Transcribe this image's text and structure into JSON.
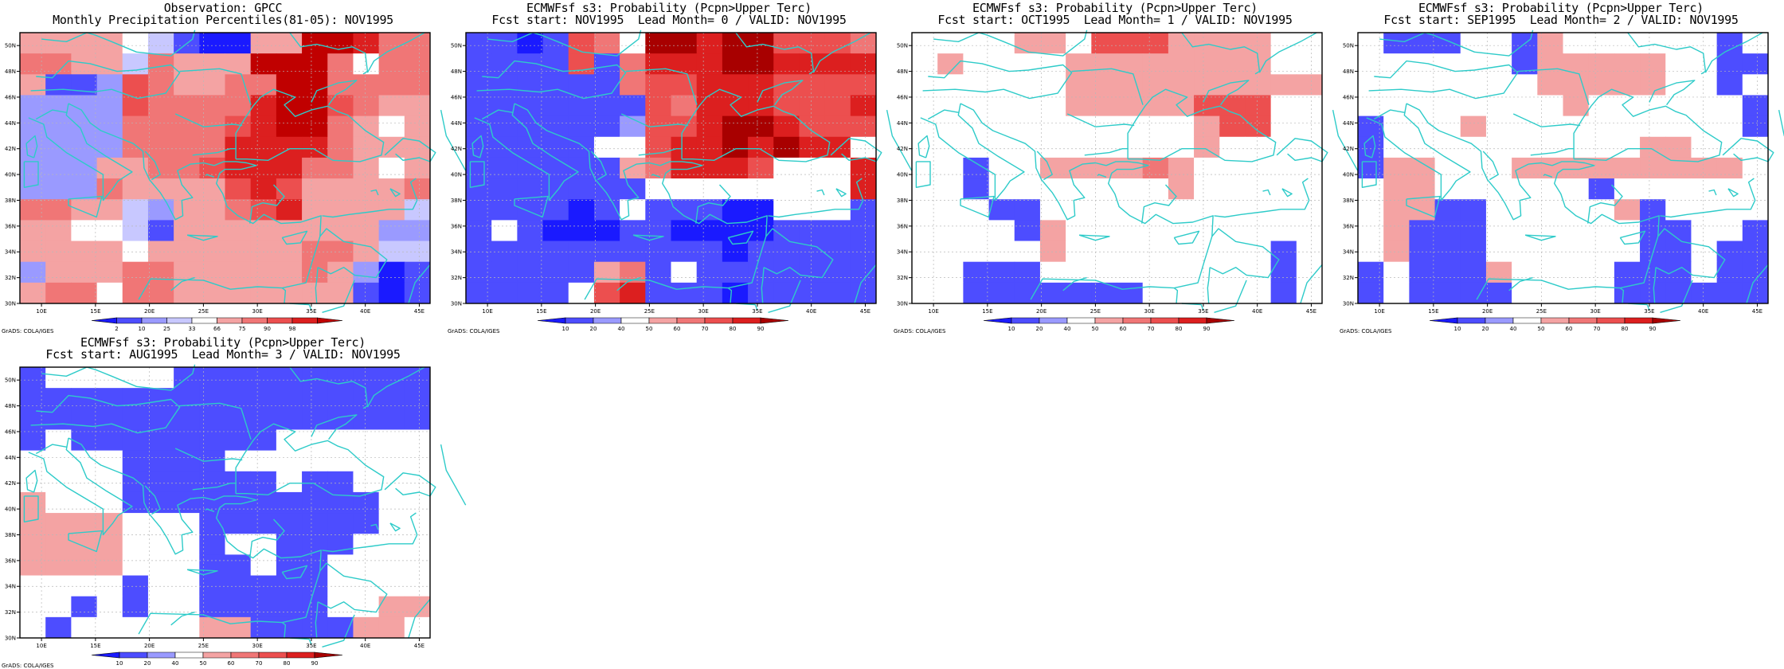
{
  "colors": {
    "coast": "#2ecbc9",
    "frame": "#000000",
    "grid": "#b8b8b8",
    "scale_prob": [
      "#1a1aff",
      "#4d4dff",
      "#9a9aff",
      "#ffffff",
      "#f4a3a3",
      "#f07676",
      "#ec4f4f",
      "#dc1f1f",
      "#a80000"
    ],
    "scale_obs": [
      "#1a1aff",
      "#4d4dff",
      "#9a9aff",
      "#c8c8ff",
      "#ffffff",
      "#f4a3a3",
      "#f07676",
      "#ec4f4f",
      "#dc1f1f",
      "#c00000"
    ]
  },
  "map_extent": {
    "lon": [
      8,
      46
    ],
    "lat": [
      30,
      51
    ]
  },
  "lon_labels": [
    "10E",
    "15E",
    "20E",
    "25E",
    "30E",
    "35E",
    "40E",
    "45E"
  ],
  "lat_labels": [
    "30N",
    "32N",
    "34N",
    "36N",
    "38N",
    "40N",
    "42N",
    "44N",
    "46N",
    "48N",
    "50N"
  ],
  "credit": "GrADS: COLA/IGES",
  "obs_scale_labels": [
    "2",
    "10",
    "25",
    "33",
    "66",
    "75",
    "90",
    "98"
  ],
  "prob_scale_labels": [
    "10",
    "20",
    "40",
    "50",
    "60",
    "70",
    "80",
    "90"
  ],
  "panels": [
    {
      "id": "obs",
      "title1": "Observation: GPCC",
      "title2": "Monthly Precipitation Percentiles(81-05): NOV1995",
      "scale": "obs",
      "grid": [
        "5555431005599866",
        "6655365559996466",
        "5112765566996666",
        "2222766668997655",
        "2222666678996545",
        "2222666688886555",
        "2225566788866545",
        "2226555578755556",
        "6655325567855553",
        "5544315555555522",
        "5555455555566533",
        "2555665555565201",
        "5664665555555101"
      ]
    },
    {
      "id": "lead0",
      "title1": "ECMWFsf s3: Probability (Pcpn>Upper Terc)",
      "title2": "Fcst start: NOV1995  Lead Month= 0 / VALID: NOV1995",
      "scale": "prob",
      "grid": [
        "1101653887886665",
        "1111615777887777",
        "1111115667776666",
        "1111111657776667",
        "1111112667887666",
        "1111133677878773",
        "1111114577763337",
        "1111111333333337",
        "1111013111003331",
        "1310001100001111",
        "1111111111011111",
        "1111145131111111",
        "1111367111011111"
      ]
    },
    {
      "id": "lead1",
      "title1": "ECMWFsf s3: Probability (Pcpn>Upper Terc)",
      "title2": "Fcst start: OCT1995  Lead Month= 1 / VALID: NOV1995",
      "scale": "prob",
      "grid": [
        "3333443666444433",
        "3433334444444433",
        "3333334444444444",
        "3333334444466633",
        "3333333333346633",
        "3333333333343333",
        "3313344445433333",
        "3313333333433333",
        "3331133333333333",
        "3333143333333333",
        "3333343333333313",
        "3311133333333313",
        "3311111113333313"
      ]
    },
    {
      "id": "lead2",
      "title1": "ECMWFsf s3: Probability (Pcpn>Upper Terc)",
      "title2": "Fcst start: SEP1995  Lead Month= 2 / VALID: NOV1995",
      "scale": "prob",
      "grid": [
        "3111331433333313",
        "3333331444443311",
        "3333333444443313",
        "3333333343333331",
        "1333433333333331",
        "1333333333344333",
        "1443334444444443",
        "3443333331333333",
        "3441133333413333",
        "3411133333311331",
        "3411133333311311",
        "1311143333111311",
        "1311113333111111"
      ]
    },
    {
      "id": "lead3",
      "title1": "ECMWFsf s3: Probability (Pcpn>Upper Terc)",
      "title2": "Fcst start: AUG1995  Lead Month= 3 / VALID: NOV1995",
      "scale": "prob",
      "grid": [
        "1333331111111111",
        "1111111111111111",
        "1111111111111111",
        "1311111111333333",
        "3333111133333333",
        "3333111111311333",
        "4333111111111133",
        "4444333111111133",
        "4444333133111333",
        "4444333113113333",
        "3333133111113333",
        "3313133111113344",
        "3133333441111443"
      ]
    }
  ]
}
